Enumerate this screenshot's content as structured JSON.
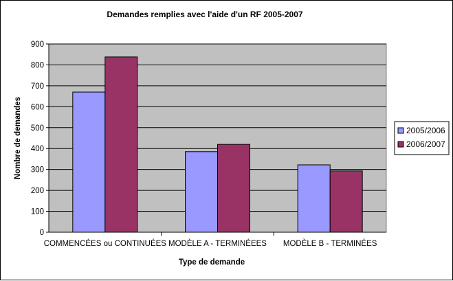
{
  "chart_data": {
    "type": "bar",
    "title": "Demandes remplies avec l'aide d'un RF 2005-2007",
    "xlabel": "Type de demande",
    "ylabel": "Nombre de demandes",
    "ylim": [
      0,
      900
    ],
    "yticks": [
      0,
      100,
      200,
      300,
      400,
      500,
      600,
      700,
      800,
      900
    ],
    "grid": true,
    "legend_position": "right",
    "categories": [
      "COMMENCÉES ou CONTINUÉES",
      "MODÈLE A - TERMINÉEES",
      "MODÈLE B - TERMINÉES"
    ],
    "series": [
      {
        "name": "2005/2006",
        "color": "#9999ff",
        "values": [
          670,
          385,
          322
        ]
      },
      {
        "name": "2006/2007",
        "color": "#993366",
        "values": [
          838,
          420,
          293
        ]
      }
    ],
    "plot_background": "#c0c0c0"
  }
}
